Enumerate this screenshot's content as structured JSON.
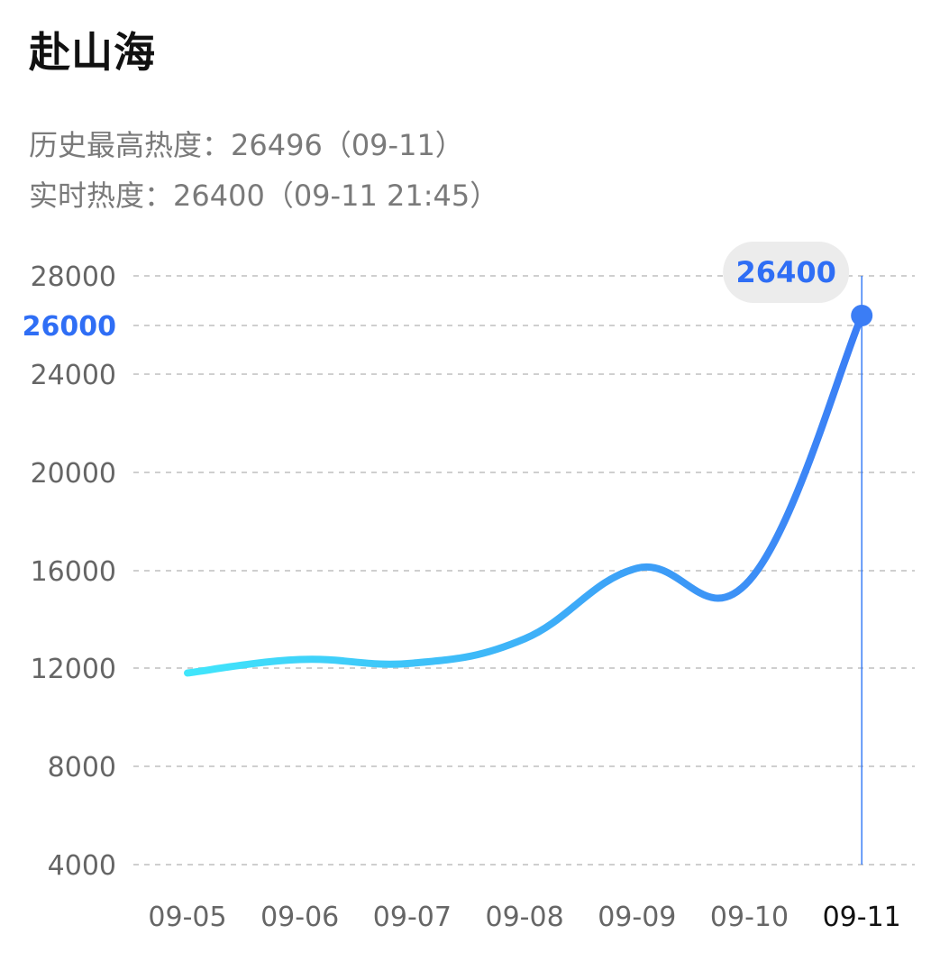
{
  "header": {
    "title": "赴山海",
    "history_peak_label": "历史最高热度：",
    "history_peak_value": "26496",
    "history_peak_date": "（09-11）",
    "realtime_label": "实时热度：",
    "realtime_value": "26400",
    "realtime_time": "（09-11 21:45）"
  },
  "chart_data": {
    "type": "line",
    "title": "",
    "xlabel": "",
    "ylabel": "",
    "categories": [
      "09-05",
      "09-06",
      "09-07",
      "09-08",
      "09-09",
      "09-10",
      "09-11"
    ],
    "points": [
      {
        "x": "09-05",
        "y": 11800
      },
      {
        "x": "09-06",
        "y": 12350
      },
      {
        "x": "09-07",
        "y": 12200
      },
      {
        "x": "09-08",
        "y": 13200
      },
      {
        "x": "09-09",
        "y": 16100
      },
      {
        "x": "09-10",
        "y": 15600
      },
      {
        "x": "09-11",
        "y": 26400
      }
    ],
    "y_ticks": [
      4000,
      8000,
      12000,
      16000,
      20000,
      24000,
      26000,
      28000
    ],
    "highlight_y_tick": 26000,
    "ylim": [
      4000,
      28000
    ],
    "active_category": "09-11",
    "tooltip_value": "26400",
    "grid": "horizontal dashed",
    "legend": "none",
    "colors": {
      "line_start": "#40e6fb",
      "line_end": "#3b7df5",
      "marker": "#3b7df5",
      "highlight_text": "#2f6ef5",
      "tooltip_bg": "#ececec",
      "grid": "#cfcfcf",
      "crosshair": "#3b7df5"
    }
  }
}
